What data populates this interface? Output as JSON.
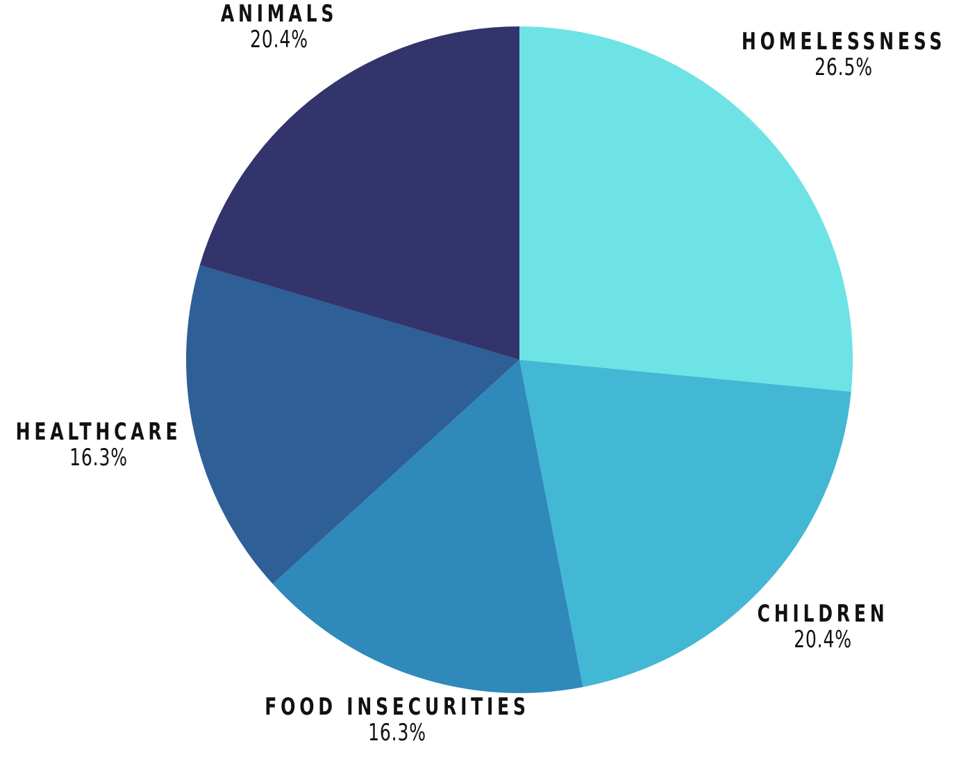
{
  "chart_data": {
    "type": "pie",
    "slices": [
      {
        "label": "HOMELESSNESS",
        "value": 26.5,
        "value_label": "26.5%",
        "color": "#6ee3e6"
      },
      {
        "label": "CHILDREN",
        "value": 20.4,
        "value_label": "20.4%",
        "color": "#43b8d5"
      },
      {
        "label": "FOOD INSECURITIES",
        "value": 16.3,
        "value_label": "16.3%",
        "color": "#2f89ba"
      },
      {
        "label": "HEALTHCARE",
        "value": 16.3,
        "value_label": "16.3%",
        "color": "#2e5f97"
      },
      {
        "label": "ANIMALS",
        "value": 20.4,
        "value_label": "20.4%",
        "color": "#32346b"
      }
    ],
    "start": "top",
    "direction": "clockwise",
    "legend": "none"
  }
}
